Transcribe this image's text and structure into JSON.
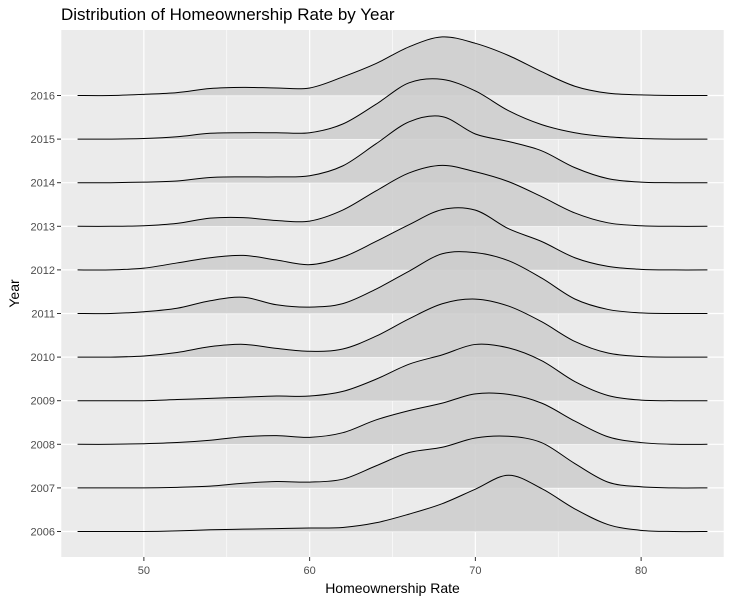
{
  "chart_data": {
    "type": "ridgeline",
    "title": "Distribution of Homeownership Rate by Year",
    "xlabel": "Homeownership Rate",
    "ylabel": "Year",
    "xlim": [
      45,
      85
    ],
    "x_ticks": [
      50,
      60,
      70,
      80
    ],
    "grid": true,
    "colors": {
      "panel": "#ebebeb",
      "grid": "#ffffff",
      "fill": "#cccccc",
      "line": "#000000"
    },
    "density_x": [
      46,
      48,
      50,
      52,
      54,
      56,
      58,
      60,
      62,
      64,
      66,
      68,
      70,
      72,
      74,
      76,
      78,
      80,
      82,
      84
    ],
    "series": [
      {
        "name": "2006",
        "values": [
          0,
          0,
          0,
          0.01,
          0.03,
          0.04,
          0.05,
          0.06,
          0.07,
          0.15,
          0.3,
          0.48,
          0.73,
          0.97,
          0.74,
          0.39,
          0.12,
          0.02,
          0,
          0
        ]
      },
      {
        "name": "2007",
        "values": [
          0,
          0,
          0,
          0.01,
          0.03,
          0.08,
          0.11,
          0.1,
          0.15,
          0.38,
          0.61,
          0.7,
          0.86,
          0.89,
          0.78,
          0.42,
          0.1,
          0.02,
          0,
          0
        ]
      },
      {
        "name": "2008",
        "values": [
          0,
          0,
          0.01,
          0.03,
          0.07,
          0.13,
          0.15,
          0.12,
          0.2,
          0.42,
          0.58,
          0.71,
          0.87,
          0.86,
          0.71,
          0.4,
          0.13,
          0.03,
          0,
          0
        ]
      },
      {
        "name": "2009",
        "values": [
          0,
          0,
          0,
          0.02,
          0.04,
          0.06,
          0.08,
          0.08,
          0.16,
          0.37,
          0.63,
          0.79,
          0.97,
          0.91,
          0.69,
          0.33,
          0.09,
          0.01,
          0,
          0
        ]
      },
      {
        "name": "2010",
        "values": [
          0,
          0,
          0.02,
          0.08,
          0.18,
          0.22,
          0.15,
          0.1,
          0.14,
          0.36,
          0.66,
          0.92,
          1.0,
          0.88,
          0.61,
          0.27,
          0.07,
          0.01,
          0,
          0
        ]
      },
      {
        "name": "2011",
        "values": [
          0,
          0,
          0.03,
          0.09,
          0.22,
          0.28,
          0.15,
          0.11,
          0.17,
          0.42,
          0.73,
          1.03,
          1.05,
          0.91,
          0.61,
          0.25,
          0.07,
          0.01,
          0,
          0
        ]
      },
      {
        "name": "2012",
        "values": [
          0,
          0,
          0.03,
          0.12,
          0.21,
          0.25,
          0.17,
          0.09,
          0.22,
          0.49,
          0.78,
          1.04,
          1.03,
          0.71,
          0.49,
          0.21,
          0.06,
          0.01,
          0,
          0
        ]
      },
      {
        "name": "2013",
        "values": [
          0,
          0,
          0.01,
          0.05,
          0.14,
          0.15,
          0.1,
          0.09,
          0.28,
          0.61,
          0.92,
          1.05,
          0.94,
          0.77,
          0.51,
          0.23,
          0.06,
          0.01,
          0,
          0
        ]
      },
      {
        "name": "2014",
        "values": [
          0,
          0,
          0.01,
          0.03,
          0.09,
          0.1,
          0.1,
          0.12,
          0.29,
          0.67,
          1.05,
          1.14,
          0.84,
          0.71,
          0.55,
          0.26,
          0.07,
          0.01,
          0,
          0
        ]
      },
      {
        "name": "2015",
        "values": [
          0,
          0,
          0.01,
          0.04,
          0.1,
          0.11,
          0.11,
          0.11,
          0.26,
          0.6,
          0.97,
          1.03,
          0.83,
          0.49,
          0.25,
          0.11,
          0.04,
          0.01,
          0,
          0
        ]
      },
      {
        "name": "2016",
        "values": [
          0,
          0,
          0.02,
          0.05,
          0.12,
          0.14,
          0.13,
          0.13,
          0.32,
          0.55,
          0.84,
          1.01,
          0.9,
          0.69,
          0.41,
          0.16,
          0.04,
          0.01,
          0,
          0
        ]
      }
    ]
  }
}
